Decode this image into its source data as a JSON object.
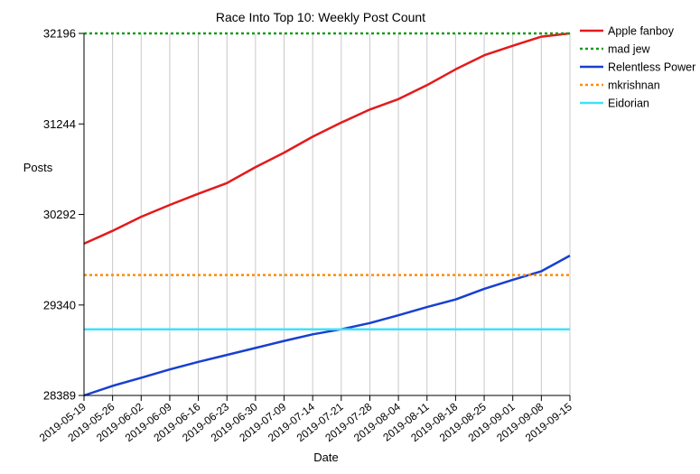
{
  "chart_data": {
    "type": "line",
    "title": "Race Into Top 10: Weekly Post Count",
    "xlabel": "Date",
    "ylabel": "Posts",
    "grid": "vertical",
    "legend_position": "top-right",
    "x": [
      "2019-05-19",
      "2019-05-26",
      "2019-06-02",
      "2019-06-09",
      "2019-06-16",
      "2019-06-23",
      "2019-06-30",
      "2019-07-09",
      "2019-07-14",
      "2019-07-21",
      "2019-07-28",
      "2019-08-04",
      "2019-08-11",
      "2019-08-18",
      "2019-08-25",
      "2019-09-01",
      "2019-09-08",
      "2019-09-15"
    ],
    "yticks": [
      28389,
      29340,
      30292,
      31244,
      32196
    ],
    "ylim": [
      28389,
      32196
    ],
    "series": [
      {
        "name": "Apple fanboy",
        "color": "#e31a1c",
        "dash": "solid",
        "values": [
          29985,
          30120,
          30268,
          30392,
          30510,
          30622,
          30790,
          30942,
          31110,
          31258,
          31396,
          31505,
          31652,
          31818,
          31966,
          32066,
          32162,
          32196
        ]
      },
      {
        "name": "mad jew",
        "color": "#1a9a1a",
        "dash": "dotted",
        "values": [
          32196,
          32196,
          32196,
          32196,
          32196,
          32196,
          32196,
          32196,
          32196,
          32196,
          32196,
          32196,
          32196,
          32196,
          32196,
          32196,
          32196,
          32196
        ]
      },
      {
        "name": "Relentless Power",
        "color": "#1740d0",
        "dash": "solid",
        "values": [
          28389,
          28490,
          28575,
          28662,
          28742,
          28815,
          28888,
          28962,
          29032,
          29085,
          29150,
          29232,
          29318,
          29398,
          29510,
          29605,
          29695,
          29860
        ]
      },
      {
        "name": "mkrishnan",
        "color": "#ff8c00",
        "dash": "dotted",
        "values": [
          29655,
          29655,
          29655,
          29655,
          29655,
          29655,
          29655,
          29655,
          29655,
          29655,
          29655,
          29655,
          29655,
          29655,
          29655,
          29655,
          29655,
          29655
        ]
      },
      {
        "name": "Eidorian",
        "color": "#40e0ff",
        "dash": "solid",
        "values": [
          29085,
          29085,
          29085,
          29085,
          29085,
          29085,
          29085,
          29085,
          29085,
          29085,
          29085,
          29085,
          29085,
          29085,
          29085,
          29085,
          29085,
          29085
        ]
      }
    ]
  }
}
